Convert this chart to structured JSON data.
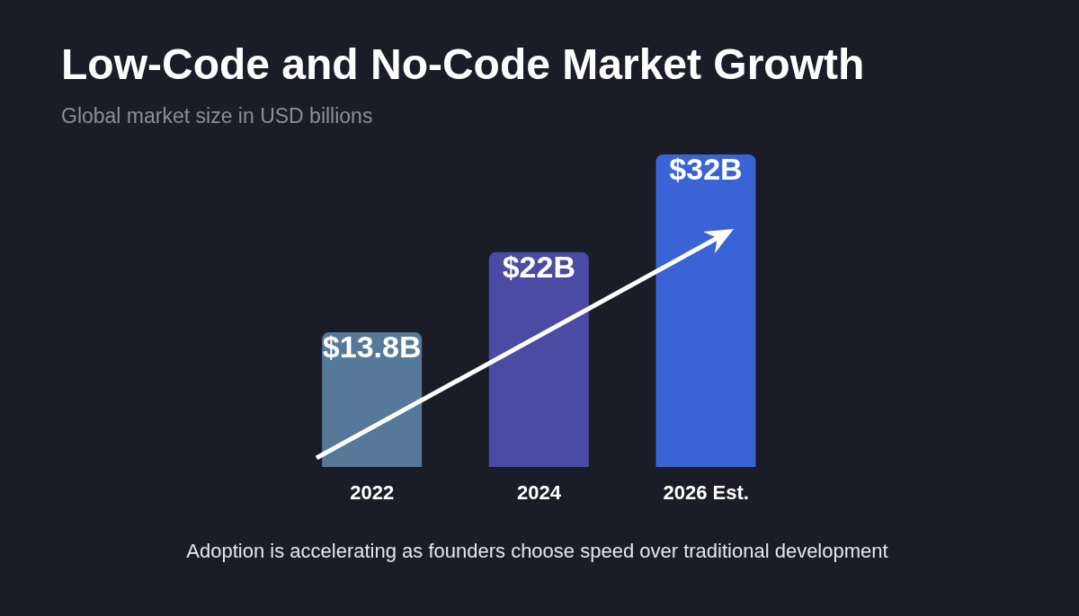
{
  "chart_data": {
    "type": "bar",
    "title": "Low-Code and No-Code Market Growth",
    "subtitle": "Global market size in USD billions",
    "categories": [
      "2022",
      "2024",
      "2026 Est."
    ],
    "values": [
      13.8,
      22,
      32
    ],
    "colors": [
      "#56799a",
      "#4b4ba3",
      "#3a63d6"
    ],
    "value_labels": [
      "$13.8B",
      "$22B",
      "$32B"
    ],
    "annotations": [
      "Adoption is accelerating as founders choose speed over traditional development"
    ]
  }
}
